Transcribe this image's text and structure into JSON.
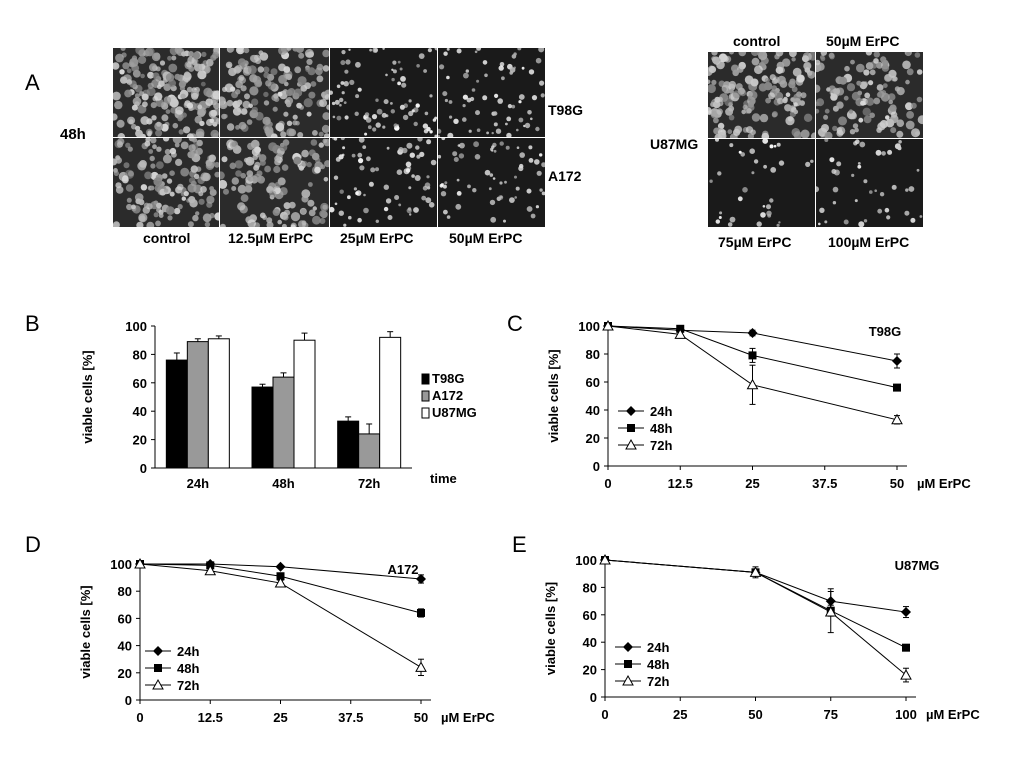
{
  "panel_labels": {
    "A": "A",
    "B": "B",
    "C": "C",
    "D": "D",
    "E": "E"
  },
  "micrographs": {
    "left": {
      "time_label": "48h",
      "rows": [
        "T98G",
        "A172"
      ],
      "columns": [
        "control",
        "12.5µM ErPC",
        "25µM ErPC",
        "50µM ErPC"
      ],
      "cell_density": [
        [
          0.95,
          0.75,
          0.35,
          0.3
        ],
        [
          0.7,
          0.6,
          0.3,
          0.25
        ]
      ]
    },
    "right": {
      "row_label": "U87MG",
      "top_labels": [
        "control",
        "50µM ErPC"
      ],
      "bottom_labels": [
        "75µM ErPC",
        "100µM ErPC"
      ],
      "cell_density": [
        [
          0.8,
          0.55
        ],
        [
          0.12,
          0.15
        ]
      ]
    }
  },
  "chart_data": [
    {
      "id": "B",
      "type": "bar",
      "title": "",
      "xlabel": "time",
      "ylabel": "viable cells [%]",
      "ylim": [
        0,
        100
      ],
      "yticks": [
        "0",
        "20",
        "40",
        "60",
        "80",
        "100"
      ],
      "categories": [
        "24h",
        "48h",
        "72h"
      ],
      "legend": "right",
      "series": [
        {
          "name": "T98G",
          "color": "#000000",
          "values": [
            76,
            57,
            33
          ],
          "errors": [
            5,
            2,
            3
          ]
        },
        {
          "name": "A172",
          "color": "#999999",
          "values": [
            89,
            64,
            24
          ],
          "errors": [
            2,
            3,
            7
          ]
        },
        {
          "name": "U87MG",
          "color": "#ffffff",
          "values": [
            91,
            90,
            92
          ],
          "errors": [
            2,
            5,
            4
          ]
        }
      ]
    },
    {
      "id": "C",
      "type": "line",
      "annotation": "T98G",
      "xlabel": "µM ErPC",
      "ylabel": "viable cells [%]",
      "x": [
        0,
        12.5,
        25,
        50
      ],
      "xticks": [
        "0",
        "12.5",
        "25",
        "37.5",
        "50"
      ],
      "xlim": [
        0,
        50
      ],
      "ylim": [
        0,
        100
      ],
      "yticks": [
        "0",
        "20",
        "40",
        "60",
        "80",
        "100"
      ],
      "legend": "bottom-left",
      "series": [
        {
          "name": "24h",
          "marker": "diamond",
          "values": [
            100,
            97,
            95,
            75
          ],
          "errors": [
            0,
            1,
            2,
            5
          ]
        },
        {
          "name": "48h",
          "marker": "square",
          "values": [
            100,
            98,
            79,
            56
          ],
          "errors": [
            0,
            1,
            5,
            2
          ]
        },
        {
          "name": "72h",
          "marker": "triangle",
          "values": [
            100,
            94,
            58,
            33
          ],
          "errors": [
            0,
            2,
            14,
            3
          ]
        }
      ]
    },
    {
      "id": "D",
      "type": "line",
      "annotation": "A172",
      "xlabel": "µM ErPC",
      "ylabel": "viable cells [%]",
      "x": [
        0,
        12.5,
        25,
        50
      ],
      "xticks": [
        "0",
        "12.5",
        "25",
        "37.5",
        "50"
      ],
      "xlim": [
        0,
        50
      ],
      "ylim": [
        0,
        100
      ],
      "yticks": [
        "0",
        "20",
        "40",
        "60",
        "80",
        "100"
      ],
      "legend": "bottom-left",
      "series": [
        {
          "name": "24h",
          "marker": "diamond",
          "values": [
            100,
            100,
            98,
            89
          ],
          "errors": [
            0,
            1,
            1,
            3
          ]
        },
        {
          "name": "48h",
          "marker": "square",
          "values": [
            100,
            99,
            91,
            64
          ],
          "errors": [
            0,
            1,
            2,
            3
          ]
        },
        {
          "name": "72h",
          "marker": "triangle",
          "values": [
            100,
            95,
            86,
            24
          ],
          "errors": [
            0,
            2,
            2,
            6
          ]
        }
      ]
    },
    {
      "id": "E",
      "type": "line",
      "annotation": "U87MG",
      "xlabel": "µM ErPC",
      "ylabel": "viable cells [%]",
      "x": [
        0,
        50,
        75,
        100
      ],
      "xticks": [
        "0",
        "25",
        "50",
        "75",
        "100"
      ],
      "xlim": [
        0,
        100
      ],
      "ylim": [
        0,
        100
      ],
      "yticks": [
        "0",
        "20",
        "40",
        "60",
        "80",
        "100"
      ],
      "legend": "bottom-left",
      "series": [
        {
          "name": "24h",
          "marker": "diamond",
          "values": [
            100,
            91,
            70,
            62
          ],
          "errors": [
            0,
            2,
            9,
            4
          ]
        },
        {
          "name": "48h",
          "marker": "square",
          "values": [
            100,
            91,
            63,
            36
          ],
          "errors": [
            0,
            2,
            4,
            2
          ]
        },
        {
          "name": "72h",
          "marker": "triangle",
          "values": [
            100,
            91,
            62,
            16
          ],
          "errors": [
            0,
            4,
            15,
            5
          ]
        }
      ]
    }
  ]
}
